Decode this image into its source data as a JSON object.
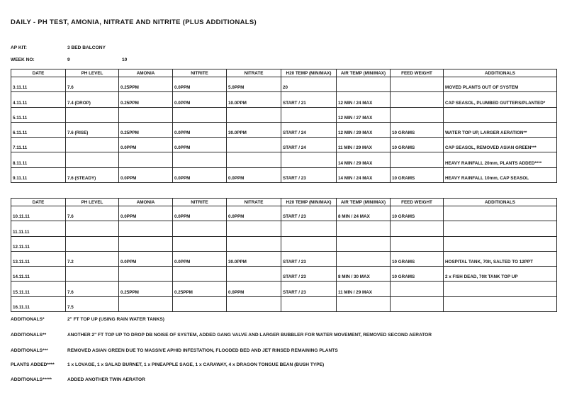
{
  "title": "DAILY - PH TEST, AMONIA, NITRATE AND NITRITE (PLUS ADDITIONALS)",
  "meta": {
    "ap_kit_label": "AP KIT:",
    "ap_kit_value": "3 BED BALCONY",
    "week_no_label": "WEEK NO:",
    "week_1": "9",
    "week_2": "10"
  },
  "columns": [
    "DATE",
    "PH LEVEL",
    "AMONIA",
    "NITRITE",
    "NITRATE",
    "H20 TEMP (MIN/MAX)",
    "AIR TEMP (MIN/MAX)",
    "FEED WEIGHT",
    "ADDITIONALS"
  ],
  "table1": {
    "rows": [
      [
        "3.11.11",
        "7.6",
        "0.25PPM",
        "0.0PPM",
        "5.0PPM",
        "20",
        "",
        "",
        "MOVED PLANTS OUT OF SYSTEM"
      ],
      [
        "4.11.11",
        "7.4 (DROP)",
        "0.25PPM",
        "0.0PPM",
        "10.0PPM",
        "START / 21",
        "12 MIN / 24 MAX",
        "",
        "CAP SEASOL, PLUMBED GUTTERS/PLANTED*"
      ],
      [
        "5.11.11",
        "",
        "",
        "",
        "",
        "",
        "12 MIN / 27 MAX",
        "",
        ""
      ],
      [
        "6.11.11",
        "7.6 (RISE)",
        "0.25PPM",
        "0.0PPM",
        "30.0PPM",
        "START / 24",
        "12 MIN / 29 MAX",
        "10 GRAMS",
        "WATER TOP UP, LARGER AERATION**"
      ],
      [
        "7.11.11",
        "",
        "0.0PPM",
        "0.0PPM",
        "",
        "START / 24",
        "11 MIN / 29 MAX",
        "10 GRAMS",
        "CAP SEASOL, REMOVED ASIAN GREEN***"
      ],
      [
        "8.11.11",
        "",
        "",
        "",
        "",
        "",
        "14 MIN / 29 MAX",
        "",
        "HEAVY RAINFALL 20mm, PLANTS ADDED****"
      ],
      [
        "9.11.11",
        "7.6 (STEADY)",
        "0.0PPM",
        "0.0PPM",
        "0.0PPM",
        "START / 23",
        "14 MIN / 24 MAX",
        "10 GRAMS",
        "HEAVY RAINFALL 10mm, CAP SEASOL"
      ]
    ]
  },
  "table2": {
    "rows": [
      [
        "10.11.11",
        "7.6",
        "0.0PPM",
        "0.0PPM",
        "0.0PPM",
        "START / 23",
        "8 MIN / 24 MAX",
        "10 GRAMS",
        ""
      ],
      [
        "11.11.11",
        "",
        "",
        "",
        "",
        "",
        "",
        "",
        ""
      ],
      [
        "12.11.11",
        "",
        "",
        "",
        "",
        "",
        "",
        "",
        ""
      ],
      [
        "13.11.11",
        "7.2",
        "0.0PPM",
        "0.0PPM",
        "30.0PPM",
        "START / 23",
        "",
        "10 GRAMS",
        "HOSPITAL TANK, 70lt, SALTED TO 12PPT"
      ],
      [
        "14.11.11",
        "",
        "",
        "",
        "",
        "START / 23",
        "8 MIN / 30 MAX",
        "10 GRAMS",
        "2 x FISH DEAD, 70lt TANK TOP UP"
      ],
      [
        "15.11.11",
        "7.6",
        "0.25PPM",
        "0.25PPM",
        "0.0PPM",
        "START / 23",
        "11 MIN / 29 MAX",
        "",
        ""
      ],
      [
        "16.11.11",
        "7.5",
        "",
        "",
        "",
        "",
        "",
        "",
        ""
      ]
    ]
  },
  "footnotes": [
    {
      "label": "ADDITIONALS*",
      "text": "2\" FT TOP UP (USING RAIN WATER TANKS)"
    },
    {
      "label": "ADDITIONALS**",
      "text": "ANOTHER 2\" FT TOP UP TO DROP DB NOISE OF SYSTEM, ADDED GANG VALVE AND LARGER BUBBLER FOR WATER MOVEMENT, REMOVED SECOND AERATOR"
    },
    {
      "label": "ADDITIONALS***",
      "text": "REMOVED ASIAN GREEN DUE TO MASSIVE APHID INFESTATION, FLOODED BED AND JET RINSED REMAINING PLANTS"
    },
    {
      "label": "PLANTS ADDED****",
      "text": "1 x LOVAGE, 1 x SALAD BURNET, 1 x PINEAPPLE SAGE, 1 x CARAWAY, 4 x DRAGON TONGUE BEAN (BUSH TYPE)"
    },
    {
      "label": "ADDITIONALS*****",
      "text": "ADDED ANOTHER TWIN AERATOR"
    }
  ]
}
